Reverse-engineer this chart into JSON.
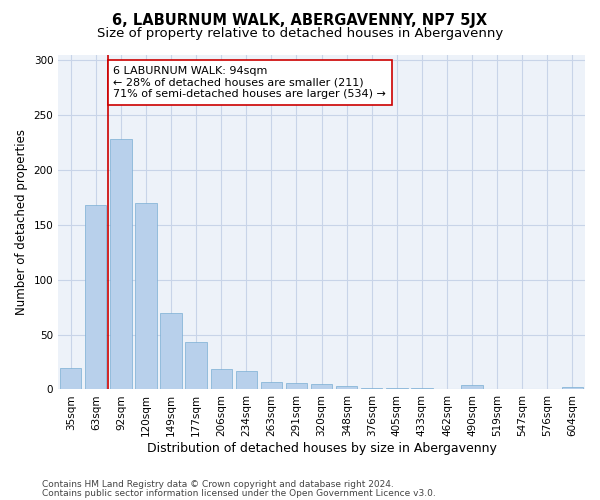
{
  "title": "6, LABURNUM WALK, ABERGAVENNY, NP7 5JX",
  "subtitle": "Size of property relative to detached houses in Abergavenny",
  "xlabel": "Distribution of detached houses by size in Abergavenny",
  "ylabel": "Number of detached properties",
  "categories": [
    "35sqm",
    "63sqm",
    "92sqm",
    "120sqm",
    "149sqm",
    "177sqm",
    "206sqm",
    "234sqm",
    "263sqm",
    "291sqm",
    "320sqm",
    "348sqm",
    "376sqm",
    "405sqm",
    "433sqm",
    "462sqm",
    "490sqm",
    "519sqm",
    "547sqm",
    "576sqm",
    "604sqm"
  ],
  "values": [
    20,
    168,
    228,
    170,
    70,
    43,
    19,
    17,
    7,
    6,
    5,
    3,
    1,
    1,
    1,
    0,
    4,
    0,
    0,
    0,
    2
  ],
  "bar_color": "#b8d0eb",
  "bar_edge_color": "#7aaed4",
  "vline_color": "#cc0000",
  "annotation_text": "6 LABURNUM WALK: 94sqm\n← 28% of detached houses are smaller (211)\n71% of semi-detached houses are larger (534) →",
  "annotation_box_color": "#ffffff",
  "annotation_box_edge": "#cc0000",
  "ylim": [
    0,
    305
  ],
  "yticks": [
    0,
    50,
    100,
    150,
    200,
    250,
    300
  ],
  "grid_color": "#c8d4e8",
  "background_color": "#edf2f9",
  "footnote1": "Contains HM Land Registry data © Crown copyright and database right 2024.",
  "footnote2": "Contains public sector information licensed under the Open Government Licence v3.0.",
  "title_fontsize": 10.5,
  "subtitle_fontsize": 9.5,
  "ylabel_fontsize": 8.5,
  "xlabel_fontsize": 9,
  "tick_fontsize": 7.5,
  "annotation_fontsize": 8,
  "footnote_fontsize": 6.5
}
